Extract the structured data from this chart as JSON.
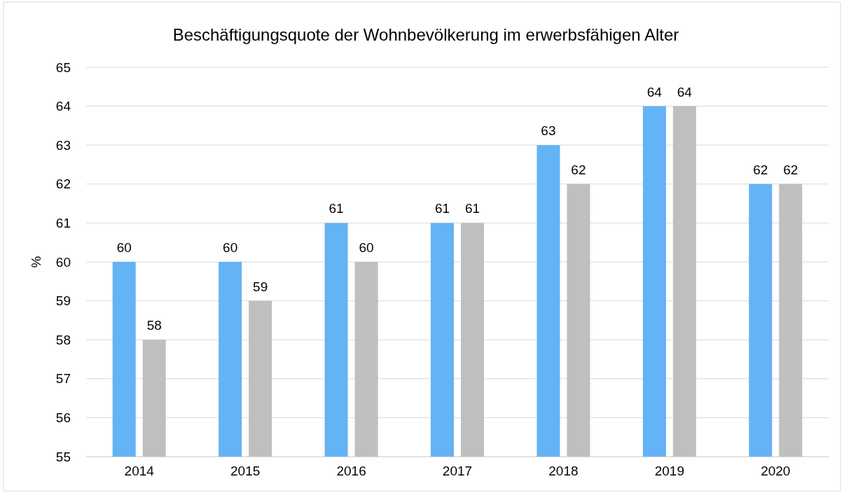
{
  "chart_data": {
    "type": "bar",
    "title": "Beschäftigungsquote der Wohnbevölkerung im erwerbsfähigen Alter",
    "ylabel": "%",
    "categories": [
      "2014",
      "2015",
      "2016",
      "2017",
      "2018",
      "2019",
      "2020"
    ],
    "series": [
      {
        "color": "#63b3f5",
        "values": [
          60,
          60,
          61,
          61,
          63,
          64,
          62
        ]
      },
      {
        "color": "#bfbfbf",
        "values": [
          58,
          59,
          60,
          61,
          62,
          64,
          62
        ]
      }
    ],
    "ylim": [
      55,
      65
    ],
    "yticks": [
      55,
      56,
      57,
      58,
      59,
      60,
      61,
      62,
      63,
      64,
      65
    ],
    "grid": "y",
    "data_labels": true
  }
}
